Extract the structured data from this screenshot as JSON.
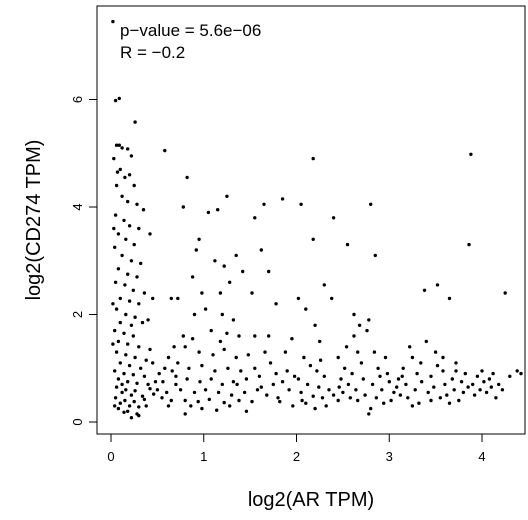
{
  "chart_data": {
    "type": "scatter",
    "xlabel": "log2(AR TPM)",
    "ylabel": "log2(CD274 TPM)",
    "xlim": [
      -0.15,
      4.5
    ],
    "ylim": [
      -0.2,
      7.5
    ],
    "x_ticks": [
      "0",
      "1",
      "2",
      "3",
      "4"
    ],
    "y_ticks": [
      "0",
      "2",
      "4",
      "6"
    ],
    "annotations": {
      "pvalue": "p−value = 5.6e−06",
      "r": "R = −0.2"
    },
    "point_color": "#000000",
    "grid": false,
    "points": [
      [
        0.02,
        7.45
      ],
      [
        0.05,
        5.98
      ],
      [
        0.09,
        6.02
      ],
      [
        0.26,
        5.58
      ],
      [
        0.58,
        5.05
      ],
      [
        0.06,
        5.15
      ],
      [
        0.12,
        5.1
      ],
      [
        0.18,
        5.08
      ],
      [
        0.22,
        4.95
      ],
      [
        0.03,
        4.9
      ],
      [
        0.1,
        4.7
      ],
      [
        0.15,
        4.55
      ],
      [
        0.2,
        4.6
      ],
      [
        0.25,
        4.4
      ],
      [
        0.06,
        4.4
      ],
      [
        0.12,
        4.2
      ],
      [
        0.18,
        4.1
      ],
      [
        0.28,
        4.05
      ],
      [
        0.35,
        3.95
      ],
      [
        0.05,
        3.85
      ],
      [
        0.14,
        3.75
      ],
      [
        0.2,
        3.65
      ],
      [
        0.3,
        3.6
      ],
      [
        0.42,
        3.5
      ],
      [
        0.08,
        3.5
      ],
      [
        0.16,
        3.4
      ],
      [
        0.25,
        3.3
      ],
      [
        0.04,
        3.25
      ],
      [
        0.12,
        3.1
      ],
      [
        0.22,
        3.0
      ],
      [
        0.32,
        2.95
      ],
      [
        0.08,
        2.85
      ],
      [
        0.18,
        2.75
      ],
      [
        0.28,
        2.7
      ],
      [
        0.05,
        2.6
      ],
      [
        0.15,
        2.55
      ],
      [
        0.24,
        2.45
      ],
      [
        0.36,
        2.4
      ],
      [
        0.1,
        2.3
      ],
      [
        0.2,
        2.25
      ],
      [
        0.3,
        2.2
      ],
      [
        0.45,
        2.3
      ],
      [
        0.06,
        2.1
      ],
      [
        0.16,
        2.0
      ],
      [
        0.26,
        1.95
      ],
      [
        0.4,
        1.9
      ],
      [
        0.1,
        1.85
      ],
      [
        0.22,
        1.8
      ],
      [
        0.34,
        1.85
      ],
      [
        0.04,
        1.7
      ],
      [
        0.14,
        1.65
      ],
      [
        0.24,
        1.6
      ],
      [
        0.08,
        1.5
      ],
      [
        0.18,
        1.45
      ],
      [
        0.3,
        1.4
      ],
      [
        0.42,
        1.35
      ],
      [
        0.06,
        1.3
      ],
      [
        0.16,
        1.25
      ],
      [
        0.26,
        1.2
      ],
      [
        0.38,
        1.15
      ],
      [
        0.1,
        1.1
      ],
      [
        0.2,
        1.05
      ],
      [
        0.32,
        1.0
      ],
      [
        0.04,
        0.95
      ],
      [
        0.14,
        0.9
      ],
      [
        0.24,
        0.88
      ],
      [
        0.36,
        0.85
      ],
      [
        0.08,
        0.8
      ],
      [
        0.18,
        0.75
      ],
      [
        0.28,
        0.72
      ],
      [
        0.4,
        0.7
      ],
      [
        0.06,
        0.65
      ],
      [
        0.16,
        0.6
      ],
      [
        0.26,
        0.58
      ],
      [
        0.12,
        0.55
      ],
      [
        0.22,
        0.5
      ],
      [
        0.34,
        0.48
      ],
      [
        0.46,
        0.52
      ],
      [
        0.05,
        0.45
      ],
      [
        0.15,
        0.4
      ],
      [
        0.25,
        0.38
      ],
      [
        0.36,
        0.42
      ],
      [
        0.1,
        0.35
      ],
      [
        0.2,
        0.3
      ],
      [
        0.3,
        0.28
      ],
      [
        0.08,
        0.25
      ],
      [
        0.18,
        0.2
      ],
      [
        0.28,
        0.15
      ],
      [
        0.04,
        0.3
      ],
      [
        0.14,
        0.18
      ],
      [
        0.5,
        0.6
      ],
      [
        0.55,
        0.45
      ],
      [
        0.6,
        0.55
      ],
      [
        0.48,
        0.75
      ],
      [
        0.65,
        0.4
      ],
      [
        0.52,
        0.9
      ],
      [
        0.7,
        0.7
      ],
      [
        0.58,
        1.0
      ],
      [
        0.62,
        1.2
      ],
      [
        0.45,
        1.1
      ],
      [
        0.3,
        0.12
      ],
      [
        0.22,
        0.08
      ],
      [
        0.42,
        0.62
      ],
      [
        0.38,
        0.3
      ],
      [
        0.12,
        0.7
      ],
      [
        0.02,
        1.45
      ],
      [
        0.02,
        2.2
      ],
      [
        0.03,
        3.6
      ],
      [
        0.07,
        4.65
      ],
      [
        0.09,
        5.15
      ],
      [
        0.82,
        4.55
      ],
      [
        0.78,
        4.0
      ],
      [
        0.92,
        3.2
      ],
      [
        0.95,
        3.4
      ],
      [
        1.05,
        3.9
      ],
      [
        1.15,
        3.95
      ],
      [
        1.25,
        4.2
      ],
      [
        1.12,
        3.0
      ],
      [
        1.22,
        2.9
      ],
      [
        1.35,
        3.1
      ],
      [
        0.88,
        2.7
      ],
      [
        0.98,
        2.4
      ],
      [
        1.18,
        2.4
      ],
      [
        1.28,
        2.6
      ],
      [
        1.42,
        2.8
      ],
      [
        1.52,
        2.4
      ],
      [
        0.72,
        2.3
      ],
      [
        0.65,
        2.3
      ],
      [
        0.9,
        2.0
      ],
      [
        1.02,
        2.1
      ],
      [
        1.2,
        2.0
      ],
      [
        1.32,
        1.9
      ],
      [
        0.78,
        1.6
      ],
      [
        0.88,
        1.55
      ],
      [
        1.08,
        1.7
      ],
      [
        1.25,
        1.65
      ],
      [
        1.38,
        1.6
      ],
      [
        1.55,
        1.6
      ],
      [
        0.8,
        1.4
      ],
      [
        0.95,
        1.3
      ],
      [
        1.1,
        1.25
      ],
      [
        1.22,
        1.35
      ],
      [
        1.35,
        1.2
      ],
      [
        1.48,
        1.25
      ],
      [
        0.72,
        1.1
      ],
      [
        0.84,
        1.0
      ],
      [
        0.98,
        1.05
      ],
      [
        1.12,
        0.95
      ],
      [
        1.26,
        1.0
      ],
      [
        1.4,
        0.95
      ],
      [
        1.55,
        1.0
      ],
      [
        0.7,
        0.85
      ],
      [
        0.82,
        0.8
      ],
      [
        0.96,
        0.75
      ],
      [
        1.08,
        0.8
      ],
      [
        1.2,
        0.7
      ],
      [
        1.32,
        0.75
      ],
      [
        1.46,
        0.8
      ],
      [
        1.6,
        0.85
      ],
      [
        0.75,
        0.6
      ],
      [
        0.9,
        0.55
      ],
      [
        1.02,
        0.6
      ],
      [
        1.16,
        0.55
      ],
      [
        1.3,
        0.5
      ],
      [
        1.44,
        0.55
      ],
      [
        1.58,
        0.6
      ],
      [
        0.8,
        0.4
      ],
      [
        0.94,
        0.38
      ],
      [
        1.06,
        0.42
      ],
      [
        1.22,
        0.36
      ],
      [
        1.38,
        0.4
      ],
      [
        1.52,
        0.38
      ],
      [
        0.98,
        0.25
      ],
      [
        1.14,
        0.22
      ],
      [
        0.8,
        0.15
      ],
      [
        1.28,
        0.3
      ],
      [
        1.65,
        4.05
      ],
      [
        1.55,
        3.8
      ],
      [
        1.62,
        3.2
      ],
      [
        1.7,
        2.8
      ],
      [
        1.66,
        1.3
      ],
      [
        1.72,
        1.1
      ],
      [
        1.78,
        0.9
      ],
      [
        1.85,
        0.75
      ],
      [
        1.92,
        0.6
      ],
      [
        1.68,
        0.5
      ],
      [
        1.8,
        0.45
      ],
      [
        1.88,
        1.3
      ],
      [
        1.95,
        1.55
      ],
      [
        1.98,
        0.85
      ],
      [
        1.75,
        0.7
      ],
      [
        1.62,
        0.65
      ],
      [
        1.82,
        0.38
      ],
      [
        1.9,
        0.95
      ],
      [
        1.7,
        1.6
      ],
      [
        1.78,
        2.2
      ],
      [
        1.85,
        4.15
      ],
      [
        2.05,
        4.05
      ],
      [
        2.18,
        4.9
      ],
      [
        2.18,
        3.4
      ],
      [
        2.02,
        2.3
      ],
      [
        2.1,
        2.1
      ],
      [
        2.2,
        1.8
      ],
      [
        2.25,
        1.5
      ],
      [
        2.08,
        1.2
      ],
      [
        2.15,
        1.05
      ],
      [
        2.22,
        0.95
      ],
      [
        2.3,
        0.85
      ],
      [
        2.02,
        0.8
      ],
      [
        2.12,
        0.7
      ],
      [
        2.24,
        0.65
      ],
      [
        2.35,
        0.6
      ],
      [
        2.05,
        0.55
      ],
      [
        2.18,
        0.48
      ],
      [
        2.28,
        0.45
      ],
      [
        2.4,
        0.5
      ],
      [
        2.1,
        0.35
      ],
      [
        2.32,
        0.3
      ],
      [
        2.45,
        0.4
      ],
      [
        2.2,
        0.25
      ],
      [
        2.3,
        2.55
      ],
      [
        2.38,
        2.3
      ],
      [
        2.45,
        1.2
      ],
      [
        2.52,
        1.0
      ],
      [
        2.6,
        0.9
      ],
      [
        2.48,
        0.8
      ],
      [
        2.56,
        0.7
      ],
      [
        2.64,
        0.6
      ],
      [
        2.5,
        0.55
      ],
      [
        2.58,
        0.45
      ],
      [
        2.66,
        0.4
      ],
      [
        2.54,
        1.4
      ],
      [
        2.62,
        1.6
      ],
      [
        2.68,
        1.8
      ],
      [
        2.4,
        3.8
      ],
      [
        2.55,
        3.3
      ],
      [
        2.62,
        2.0
      ],
      [
        2.7,
        1.1
      ],
      [
        2.72,
        0.8
      ],
      [
        2.74,
        0.5
      ],
      [
        2.78,
        1.9
      ],
      [
        2.8,
        4.05
      ],
      [
        2.85,
        3.1
      ],
      [
        2.88,
        1.0
      ],
      [
        2.9,
        0.85
      ],
      [
        2.82,
        0.7
      ],
      [
        2.92,
        0.6
      ],
      [
        2.86,
        0.45
      ],
      [
        2.94,
        0.35
      ],
      [
        2.8,
        0.25
      ],
      [
        2.96,
        1.2
      ],
      [
        2.98,
        0.9
      ],
      [
        2.78,
        0.15
      ],
      [
        2.84,
        1.3
      ],
      [
        2.76,
        1.7
      ],
      [
        3.0,
        0.75
      ],
      [
        3.05,
        0.55
      ],
      [
        3.08,
        0.65
      ],
      [
        3.1,
        0.8
      ],
      [
        3.02,
        0.4
      ],
      [
        3.12,
        0.5
      ],
      [
        3.15,
        1.0
      ],
      [
        3.18,
        0.7
      ],
      [
        3.2,
        0.45
      ],
      [
        3.22,
        1.4
      ],
      [
        3.25,
        1.2
      ],
      [
        3.28,
        0.6
      ],
      [
        3.3,
        0.9
      ],
      [
        3.32,
        0.35
      ],
      [
        3.35,
        0.75
      ],
      [
        3.38,
        2.45
      ],
      [
        3.4,
        1.5
      ],
      [
        3.42,
        0.55
      ],
      [
        3.45,
        0.85
      ],
      [
        3.48,
        0.65
      ],
      [
        3.5,
        1.3
      ],
      [
        3.52,
        2.55
      ],
      [
        3.55,
        0.45
      ],
      [
        3.58,
        0.95
      ],
      [
        3.6,
        0.7
      ],
      [
        3.62,
        0.5
      ],
      [
        3.65,
        2.3
      ],
      [
        3.68,
        0.8
      ],
      [
        3.7,
        0.6
      ],
      [
        3.72,
        1.1
      ],
      [
        3.75,
        0.4
      ],
      [
        3.78,
        0.75
      ],
      [
        3.8,
        0.55
      ],
      [
        3.82,
        0.9
      ],
      [
        3.85,
        0.65
      ],
      [
        3.86,
        3.3
      ],
      [
        3.88,
        4.98
      ],
      [
        3.9,
        0.7
      ],
      [
        3.92,
        0.5
      ],
      [
        3.95,
        0.85
      ],
      [
        3.98,
        0.6
      ],
      [
        4.0,
        0.95
      ],
      [
        4.02,
        0.75
      ],
      [
        4.05,
        0.55
      ],
      [
        4.08,
        0.8
      ],
      [
        4.1,
        0.65
      ],
      [
        4.12,
        0.9
      ],
      [
        4.15,
        0.45
      ],
      [
        4.18,
        0.7
      ],
      [
        4.22,
        0.6
      ],
      [
        4.25,
        2.4
      ],
      [
        4.3,
        0.85
      ],
      [
        4.38,
        0.95
      ],
      [
        4.42,
        0.9
      ],
      [
        3.25,
        0.3
      ],
      [
        3.45,
        0.4
      ],
      [
        3.65,
        0.35
      ],
      [
        3.58,
        1.2
      ],
      [
        3.72,
        0.95
      ],
      [
        3.52,
        1.05
      ],
      [
        3.34,
        1.1
      ],
      [
        3.14,
        0.85
      ],
      [
        2.66,
        1.3
      ],
      [
        2.46,
        0.65
      ],
      [
        2.26,
        1.15
      ],
      [
        2.06,
        0.4
      ],
      [
        1.96,
        0.3
      ],
      [
        1.46,
        0.2
      ],
      [
        1.36,
        0.7
      ],
      [
        1.18,
        1.5
      ],
      [
        0.86,
        0.3
      ],
      [
        0.66,
        0.95
      ],
      [
        0.56,
        0.75
      ],
      [
        0.62,
        0.3
      ],
      [
        0.68,
        1.4
      ]
    ]
  }
}
